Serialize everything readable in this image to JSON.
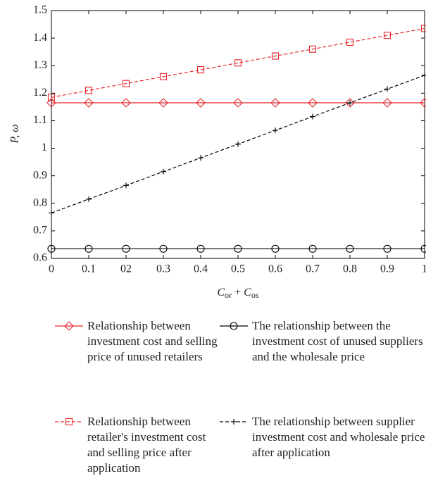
{
  "chart_data": {
    "type": "line",
    "ylabel": "P, ω",
    "xlabel": "Cor + Cos",
    "x": [
      0,
      0.1,
      0.2,
      0.3,
      0.4,
      0.5,
      0.6,
      0.7,
      0.8,
      0.9,
      1
    ],
    "xlim": [
      0,
      1
    ],
    "xticks": [
      0,
      0.1,
      {
        "value": 0.2,
        "label": "02"
      },
      0.3,
      0.4,
      0.5,
      0.6,
      0.7,
      0.8,
      0.9,
      1
    ],
    "ylim": [
      0.6,
      1.5
    ],
    "yticks": [
      0.6,
      0.7,
      0.8,
      0.9,
      1,
      1.1,
      1.2,
      1.3,
      1.4,
      1.5
    ],
    "series": [
      {
        "name": "Relationship between investment cost and selling price of unused retailers",
        "color": "#e8262b",
        "marker": "diamond",
        "dash": "solid",
        "values": [
          1.165,
          1.165,
          1.165,
          1.165,
          1.165,
          1.165,
          1.165,
          1.165,
          1.165,
          1.165,
          1.165
        ]
      },
      {
        "name": "The relationship between the investment cost of unused suppliers and the wholesale price",
        "color": "#000000",
        "marker": "circle",
        "dash": "solid",
        "values": [
          0.635,
          0.635,
          0.635,
          0.635,
          0.635,
          0.635,
          0.635,
          0.635,
          0.635,
          0.635,
          0.635
        ]
      },
      {
        "name": "Relationship between retailer's investment cost and selling price after application",
        "color": "#e8262b",
        "marker": "square",
        "dash": "dashed",
        "values": [
          1.185,
          1.21,
          1.235,
          1.26,
          1.285,
          1.31,
          1.335,
          1.36,
          1.385,
          1.41,
          1.435
        ]
      },
      {
        "name": "The relationship between supplier investment cost and wholesale price after application",
        "color": "#000000",
        "marker": "plus",
        "dash": "dashed",
        "values": [
          0.765,
          0.815,
          0.865,
          0.915,
          0.965,
          1.015,
          1.065,
          1.115,
          1.165,
          1.215,
          1.265
        ]
      }
    ]
  }
}
